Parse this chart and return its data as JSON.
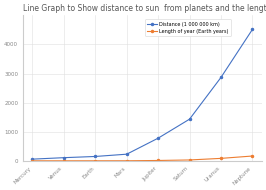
{
  "title": "Line Graph to Show distance to sun  from planets and the length of the Earth years",
  "planets": [
    "Mercury",
    "Venus",
    "Earth",
    "Mars",
    "Jupiter",
    "Saturn",
    "Uranus",
    "Neptune"
  ],
  "distance": [
    57.9,
    108.2,
    149.6,
    227.9,
    778.5,
    1432.0,
    2867.0,
    4515.0
  ],
  "earth_years": [
    0.24,
    0.62,
    1.0,
    1.88,
    11.86,
    29.46,
    84.01,
    164.8
  ],
  "distance_color": "#4472C4",
  "years_color": "#ED7D31",
  "legend_distance": "Distance (1 000 000 km)",
  "legend_years": "Length of year (Earth years)",
  "ylim": [
    0,
    5000
  ],
  "yticks": [
    0,
    1000,
    2000,
    3000,
    4000
  ],
  "bg_color": "#ffffff",
  "grid_color": "#e0e0e0",
  "title_fontsize": 5.5,
  "tick_fontsize": 4.0,
  "legend_fontsize": 3.5
}
